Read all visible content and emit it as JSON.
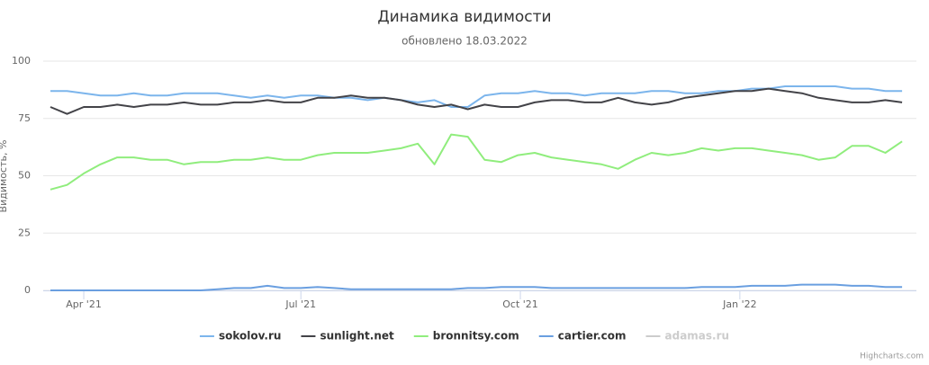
{
  "chart_data": {
    "type": "line",
    "title": "Динамика видимости",
    "subtitle": "обновлено 18.03.2022",
    "y_label": "Видимость, %",
    "credits": "Highcharts.com",
    "grid": true,
    "x": [
      "2021-03-18",
      "2021-03-25",
      "2021-04-01",
      "2021-04-08",
      "2021-04-15",
      "2021-04-22",
      "2021-04-29",
      "2021-05-06",
      "2021-05-13",
      "2021-05-20",
      "2021-05-27",
      "2021-06-03",
      "2021-06-10",
      "2021-06-17",
      "2021-06-24",
      "2021-07-01",
      "2021-07-08",
      "2021-07-15",
      "2021-07-22",
      "2021-07-29",
      "2021-08-05",
      "2021-08-12",
      "2021-08-19",
      "2021-08-26",
      "2021-09-02",
      "2021-09-09",
      "2021-09-16",
      "2021-09-23",
      "2021-09-30",
      "2021-10-07",
      "2021-10-14",
      "2021-10-21",
      "2021-10-28",
      "2021-11-04",
      "2021-11-11",
      "2021-11-18",
      "2021-11-25",
      "2021-12-02",
      "2021-12-09",
      "2021-12-16",
      "2021-12-23",
      "2021-12-30",
      "2022-01-06",
      "2022-01-13",
      "2022-01-20",
      "2022-01-27",
      "2022-02-03",
      "2022-02-10",
      "2022-02-17",
      "2022-02-24",
      "2022-03-03",
      "2022-03-10"
    ],
    "xlim": [
      "2021-03-15",
      "2022-03-16"
    ],
    "xticks": [
      {
        "value": "2021-04-01",
        "label": "Apr '21"
      },
      {
        "value": "2021-07-01",
        "label": "Jul '21"
      },
      {
        "value": "2021-10-01",
        "label": "Oct '21"
      },
      {
        "value": "2022-01-01",
        "label": "Jan '22"
      }
    ],
    "ylim": [
      0,
      100
    ],
    "yticks": [
      0,
      25,
      50,
      75,
      100
    ],
    "series": [
      {
        "name": "sokolov.ru",
        "color": "#7cb5ec",
        "values": [
          87,
          87,
          86,
          85,
          85,
          86,
          85,
          85,
          86,
          86,
          86,
          85,
          84,
          85,
          84,
          85,
          85,
          84,
          84,
          83,
          84,
          83,
          82,
          83,
          80,
          80,
          85,
          86,
          86,
          87,
          86,
          86,
          85,
          86,
          86,
          86,
          87,
          87,
          86,
          86,
          87,
          87,
          88,
          88,
          89,
          89,
          89,
          89,
          88,
          88,
          87,
          87
        ]
      },
      {
        "name": "sunlight.net",
        "color": "#434348",
        "values": [
          80,
          77,
          80,
          80,
          81,
          80,
          81,
          81,
          82,
          81,
          81,
          82,
          82,
          83,
          82,
          82,
          84,
          84,
          85,
          84,
          84,
          83,
          81,
          80,
          81,
          79,
          81,
          80,
          80,
          82,
          83,
          83,
          82,
          82,
          84,
          82,
          81,
          82,
          84,
          85,
          86,
          87,
          87,
          88,
          87,
          86,
          84,
          83,
          82,
          82,
          83,
          82
        ]
      },
      {
        "name": "bronnitsy.com",
        "color": "#90ed7d",
        "values": [
          44,
          46,
          51,
          55,
          58,
          58,
          57,
          57,
          55,
          56,
          56,
          57,
          57,
          58,
          57,
          57,
          59,
          60,
          60,
          60,
          61,
          62,
          64,
          55,
          68,
          67,
          57,
          56,
          59,
          60,
          58,
          57,
          56,
          55,
          53,
          57,
          60,
          59,
          60,
          62,
          61,
          62,
          62,
          61,
          60,
          59,
          57,
          58,
          63,
          63,
          60,
          65
        ]
      },
      {
        "name": "cartier.com",
        "color": "#6a9fe0",
        "values": [
          0,
          0,
          0,
          0,
          0,
          0,
          0,
          0,
          0,
          0,
          0.5,
          1,
          1,
          2,
          1,
          1,
          1.5,
          1,
          0.5,
          0.5,
          0.5,
          0.5,
          0.5,
          0.5,
          0.5,
          1,
          1,
          1.5,
          1.5,
          1.5,
          1,
          1,
          1,
          1,
          1,
          1,
          1,
          1,
          1,
          1.5,
          1.5,
          1.5,
          2,
          2,
          2,
          2.5,
          2.5,
          2.5,
          2,
          2,
          1.5,
          1.5
        ]
      },
      {
        "name": "adamas.ru",
        "color": "#cccccc",
        "visible": false
      }
    ]
  }
}
